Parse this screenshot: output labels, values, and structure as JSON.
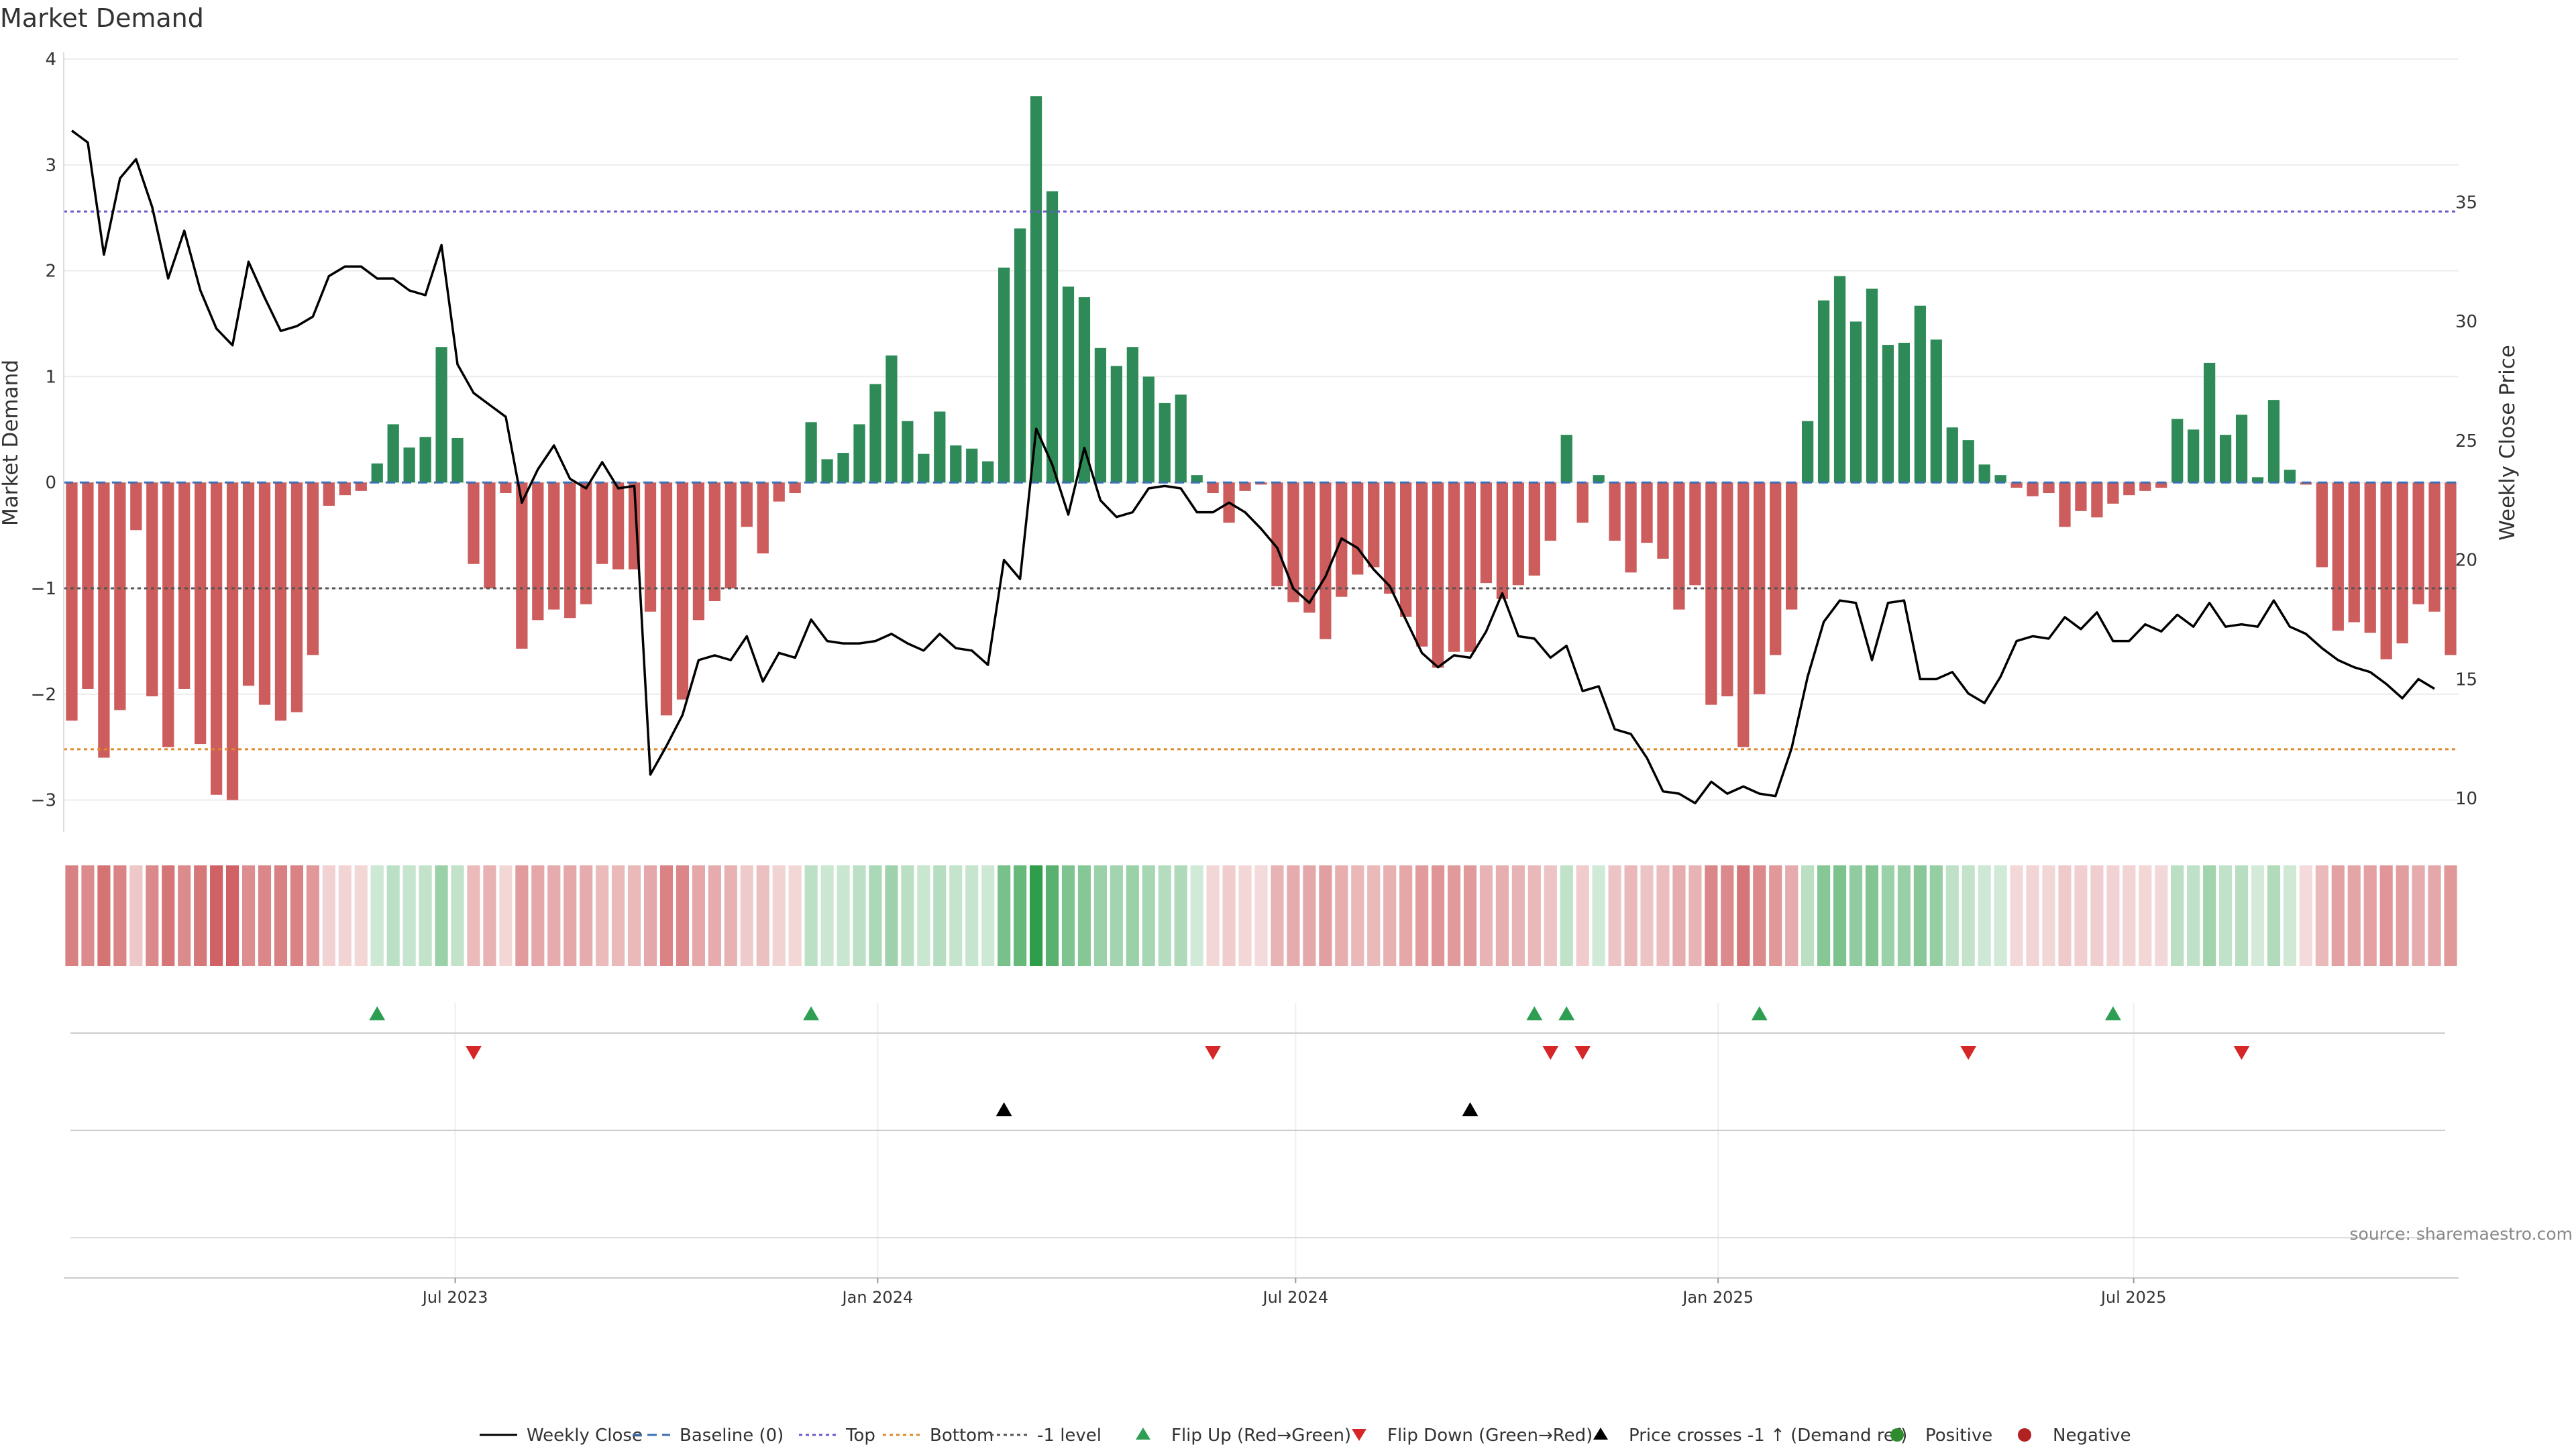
{
  "chart_data": {
    "type": "bar",
    "title": "Market Demand",
    "ylabel_left": "Market Demand",
    "ylabel_right": "Weekly Close Price",
    "ylim_left": [
      -3.3,
      4.0
    ],
    "yticks_left": [
      4,
      3,
      2,
      1,
      0,
      -1,
      -2,
      -3
    ],
    "yticks_left_labels": [
      "4",
      "3",
      "2",
      "1",
      "0",
      "−1",
      "−2",
      "−3"
    ],
    "ylim_right": [
      8.6,
      41.0
    ],
    "yticks_right": [
      35,
      30,
      25,
      20,
      15,
      10
    ],
    "reference_lines": {
      "top": 2.56,
      "bottom": -2.52,
      "minus_one": -1.0,
      "baseline": 0
    },
    "x_axis": {
      "start": "2023-01-15",
      "week_days": 7,
      "ticks": [
        {
          "label": "Jul 2023",
          "date": "2023-07-01"
        },
        {
          "label": "Jan 2024",
          "date": "2024-01-01"
        },
        {
          "label": "Jul 2024",
          "date": "2024-07-01"
        },
        {
          "label": "Jan 2025",
          "date": "2025-01-01"
        },
        {
          "label": "Jul 2025",
          "date": "2025-07-01"
        }
      ]
    },
    "series": [
      {
        "name": "Market Demand",
        "values": [
          -2.25,
          -1.95,
          -2.6,
          -2.15,
          -0.45,
          -2.02,
          -2.5,
          -1.95,
          -2.47,
          -2.95,
          -3.0,
          -1.92,
          -2.1,
          -2.25,
          -2.17,
          -1.63,
          -0.22,
          -0.12,
          -0.08,
          0.18,
          0.55,
          0.33,
          0.43,
          1.28,
          0.42,
          -0.77,
          -1.0,
          -0.1,
          -1.57,
          -1.3,
          -1.2,
          -1.28,
          -1.15,
          -0.77,
          -0.82,
          -0.82,
          -1.22,
          -2.2,
          -2.05,
          -1.3,
          -1.12,
          -1.0,
          -0.42,
          -0.67,
          -0.18,
          -0.1,
          0.57,
          0.22,
          0.28,
          0.55,
          0.93,
          1.2,
          0.58,
          0.27,
          0.67,
          0.35,
          0.32,
          0.2,
          2.03,
          2.4,
          3.65,
          2.75,
          1.85,
          1.75,
          1.27,
          1.1,
          1.28,
          1.0,
          0.75,
          0.83,
          0.07,
          -0.1,
          -0.38,
          -0.08,
          -0.02,
          -0.98,
          -1.13,
          -1.23,
          -1.48,
          -1.08,
          -0.87,
          -0.8,
          -1.05,
          -1.27,
          -1.55,
          -1.75,
          -1.6,
          -1.6,
          -0.95,
          -1.1,
          -0.97,
          -0.88,
          -0.55,
          0.45,
          -0.38,
          0.07,
          -0.55,
          -0.85,
          -0.57,
          -0.72,
          -1.2,
          -0.97,
          -2.1,
          -2.02,
          -2.5,
          -2.0,
          -1.63,
          -1.2,
          0.58,
          1.72,
          1.95,
          1.52,
          1.83,
          1.3,
          1.32,
          1.67,
          1.35,
          0.52,
          0.4,
          0.17,
          0.07,
          -0.05,
          -0.13,
          -0.1,
          -0.42,
          -0.27,
          -0.33,
          -0.2,
          -0.12,
          -0.08,
          -0.05,
          0.6,
          0.5,
          1.13,
          0.45,
          0.64,
          0.05,
          0.78,
          0.12,
          -0.02,
          -0.8,
          -1.4,
          -1.32,
          -1.42,
          -1.67,
          -1.52,
          -1.15,
          -1.22,
          -1.63
        ]
      },
      {
        "name": "Weekly Close",
        "values": [
          38.0,
          37.5,
          32.8,
          36.0,
          36.8,
          34.8,
          31.8,
          33.8,
          31.3,
          29.7,
          29.0,
          32.5,
          31.0,
          29.6,
          29.8,
          30.2,
          31.9,
          32.3,
          32.3,
          31.8,
          31.8,
          31.3,
          31.1,
          33.2,
          28.2,
          27.0,
          26.5,
          26.0,
          22.4,
          23.8,
          24.8,
          23.4,
          23.0,
          24.1,
          23.0,
          23.1,
          11.0,
          12.2,
          13.5,
          15.8,
          16.0,
          15.8,
          16.8,
          14.9,
          16.1,
          15.9,
          17.5,
          16.6,
          16.5,
          16.5,
          16.6,
          16.9,
          16.5,
          16.2,
          16.9,
          16.3,
          16.2,
          15.6,
          20.0,
          19.2,
          25.5,
          24.0,
          21.9,
          24.7,
          22.5,
          21.8,
          22.0,
          23.0,
          23.1,
          23.0,
          22.0,
          22.0,
          22.4,
          22.0,
          21.3,
          20.5,
          18.8,
          18.2,
          19.3,
          20.9,
          20.5,
          19.6,
          18.9,
          17.5,
          16.1,
          15.5,
          16.0,
          15.9,
          17.0,
          18.6,
          16.8,
          16.7,
          15.9,
          16.4,
          14.5,
          14.7,
          12.9,
          12.7,
          11.7,
          10.3,
          10.2,
          9.8,
          10.7,
          10.2,
          10.5,
          10.2,
          10.1,
          12.1,
          15.1,
          17.4,
          18.3,
          18.2,
          15.8,
          18.2,
          18.3,
          15.0,
          15.0,
          15.3,
          14.4,
          14.0,
          15.1,
          16.6,
          16.8,
          16.7,
          17.6,
          17.1,
          17.8,
          16.6,
          16.6,
          17.3,
          17.0,
          17.7,
          17.2,
          18.2,
          17.2,
          17.3,
          17.2,
          18.3,
          17.2,
          16.9,
          16.3,
          15.8,
          15.5,
          15.3,
          14.8,
          14.2,
          15.0,
          14.6
        ]
      }
    ],
    "flip_up_weeks": [
      19,
      46,
      91,
      93,
      105,
      127
    ],
    "flip_down_weeks": [
      25,
      71,
      92,
      94,
      118,
      135
    ],
    "price_cross_weeks": [
      58,
      87
    ],
    "legend": [
      {
        "label": "Weekly Close",
        "style": "solid-line",
        "color": "#000000"
      },
      {
        "label": "Baseline (0)",
        "style": "dashed-line",
        "color": "#3b6fb6"
      },
      {
        "label": "Top",
        "style": "dotted-line",
        "color": "#6a5acd"
      },
      {
        "label": "Bottom",
        "style": "dotted-line",
        "color": "#e0892a"
      },
      {
        "label": "-1 level",
        "style": "dotted-line",
        "color": "#555555"
      },
      {
        "label": "Flip Up (Red→Green)",
        "style": "triangle-up",
        "color": "#2e9e52"
      },
      {
        "label": "Flip Down (Green→Red)",
        "style": "triangle-down",
        "color": "#d62728"
      },
      {
        "label": "Price crosses -1 ↑ (Demand ref)",
        "style": "triangle-up",
        "color": "#000000"
      },
      {
        "label": "Positive",
        "style": "circle",
        "color": "#2e8b2e"
      },
      {
        "label": "Negative",
        "style": "circle",
        "color": "#b22222"
      }
    ],
    "source": "source: sharemaestro.com"
  },
  "colors": {
    "positive_bar": "#2e8b57",
    "negative_bar": "#cd5c5c",
    "heat_positive": "#2e9e4a",
    "heat_negative": "#c8474a"
  }
}
